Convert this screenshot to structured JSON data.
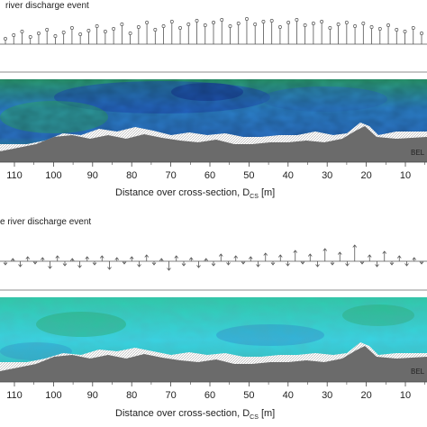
{
  "panel_top": {
    "title": "river discharge event",
    "axis_ticks": [
      "110",
      "100",
      "90",
      "80",
      "70",
      "60",
      "50",
      "40",
      "30",
      "20",
      "10"
    ],
    "xlabel_main": "Distance over cross-section, D",
    "xlabel_sub": "CS",
    "xlabel_unit": " [m]",
    "corner_label": "BEL"
  },
  "panel_bottom": {
    "title": "e river discharge event",
    "axis_ticks": [
      "110",
      "100",
      "90",
      "80",
      "70",
      "60",
      "50",
      "40",
      "30",
      "20",
      "10"
    ],
    "xlabel_main": "Distance over cross-section, D",
    "xlabel_sub": "CS",
    "xlabel_unit": " [m]",
    "corner_label": "BEL"
  },
  "colors": {
    "deep_blue": "#1f4fb8",
    "mid_blue": "#2a78c8",
    "green": "#2aa86a",
    "cyan": "#36d6e0",
    "bed": "#6b6b6b",
    "hatch": "#c8c8c8"
  }
}
